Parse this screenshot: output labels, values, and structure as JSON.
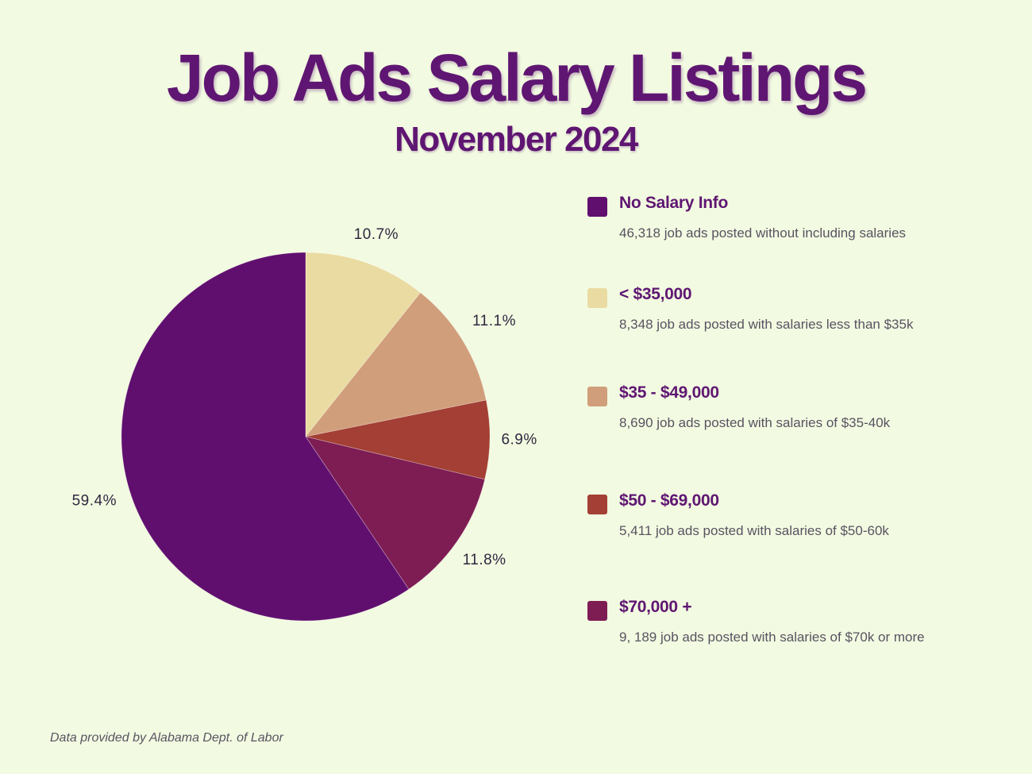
{
  "header": {
    "title": "Job Ads Salary Listings",
    "subtitle": "November 2024"
  },
  "chart_data": {
    "type": "pie",
    "title": "Job Ads Salary Listings",
    "subtitle": "November 2024",
    "start_angle_deg": 0,
    "direction": "clockwise",
    "slices": [
      {
        "label": "< $35,000",
        "value": 10.7,
        "pct_label": "10.7%",
        "color": "#eadba2"
      },
      {
        "label": "$35 - $49,000",
        "value": 11.1,
        "pct_label": "11.1%",
        "color": "#d09e7b"
      },
      {
        "label": "$50 - $69,000",
        "value": 6.9,
        "pct_label": "6.9%",
        "color": "#a33f34"
      },
      {
        "label": "$70,000 +",
        "value": 11.8,
        "pct_label": "11.8%",
        "color": "#7e1c54"
      },
      {
        "label": "No Salary Info",
        "value": 59.4,
        "pct_label": "59.4%",
        "color": "#600f6f"
      }
    ],
    "legend": [
      {
        "label": "No Salary Info",
        "description": "46,318  job ads posted without including salaries",
        "color": "#600f6f"
      },
      {
        "label": "< $35,000",
        "description": "8,348  job ads posted with salaries less than $35k",
        "color": "#eadba2"
      },
      {
        "label": "$35 - $49,000",
        "description": "8,690  job ads posted with salaries of $35-40k",
        "color": "#d09e7b"
      },
      {
        "label": "$50 - $69,000",
        "description": "5,411  job ads posted with salaries of $50-60k",
        "color": "#a33f34"
      },
      {
        "label": "$70,000 +",
        "description": "9, 189  job ads posted with salaries of $70k or more",
        "color": "#7e1c54"
      }
    ]
  },
  "footer": {
    "source": "Data provided by Alabama Dept. of Labor"
  }
}
